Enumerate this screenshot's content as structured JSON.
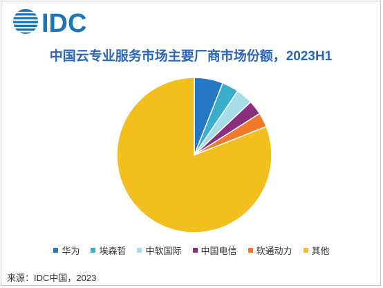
{
  "brand": {
    "logo_text": "IDC",
    "logo_color": "#1b75bb"
  },
  "chart_data": {
    "type": "pie",
    "title": "中国云专业服务市场主要厂商市场份额，2023H1",
    "categories": [
      "华为",
      "埃森哲",
      "中软国际",
      "中国电信",
      "软通动力",
      "其他"
    ],
    "values": [
      6.0,
      3.5,
      3.5,
      3.0,
      3.0,
      81.0
    ],
    "colors": [
      "#2478c4",
      "#3aaecb",
      "#a9dce9",
      "#8a2e7e",
      "#f07a2a",
      "#f2bf1f"
    ],
    "legend_position": "bottom"
  },
  "source": "来源：IDC中国，2023"
}
